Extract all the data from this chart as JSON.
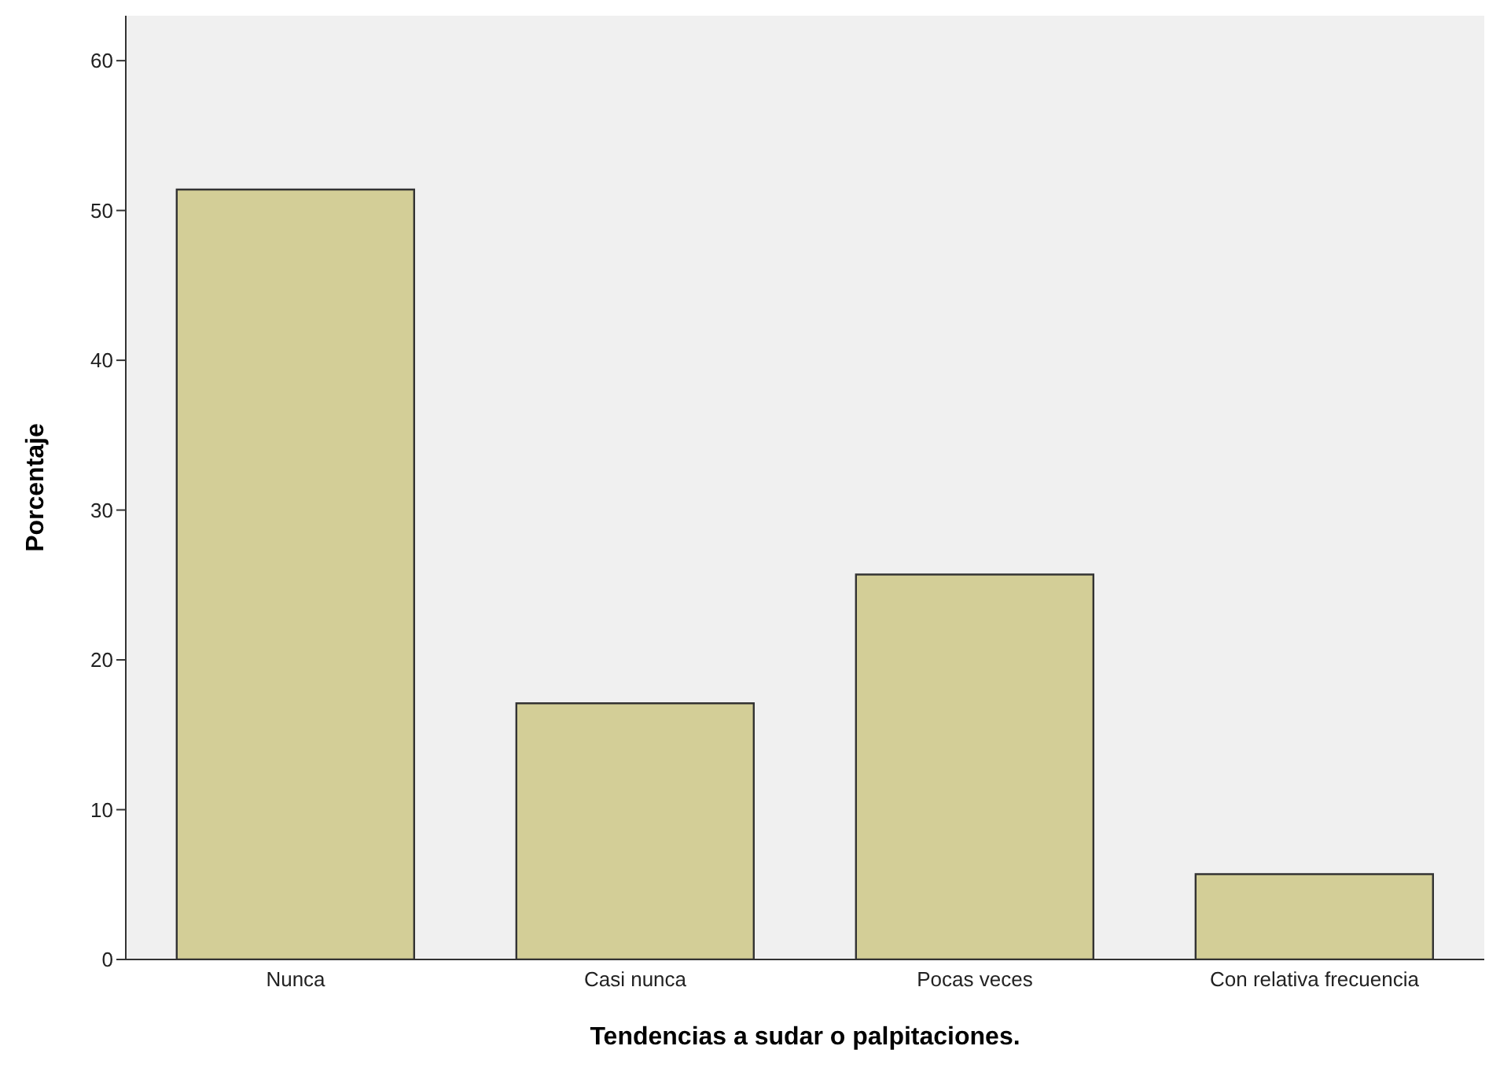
{
  "chart_data": {
    "type": "bar",
    "xlabel": "Tendencias a sudar o palpitaciones.",
    "ylabel": "Porcentaje",
    "categories": [
      "Nunca",
      "Casi nunca",
      "Pocas veces",
      "Con relativa frecuencia"
    ],
    "values": [
      51.4,
      17.1,
      25.7,
      5.7
    ],
    "color": "#d3ce97",
    "ylim": [
      0,
      63
    ],
    "yticks": [
      0,
      10,
      20,
      30,
      40,
      50,
      60
    ],
    "grid": false,
    "legend": false
  }
}
